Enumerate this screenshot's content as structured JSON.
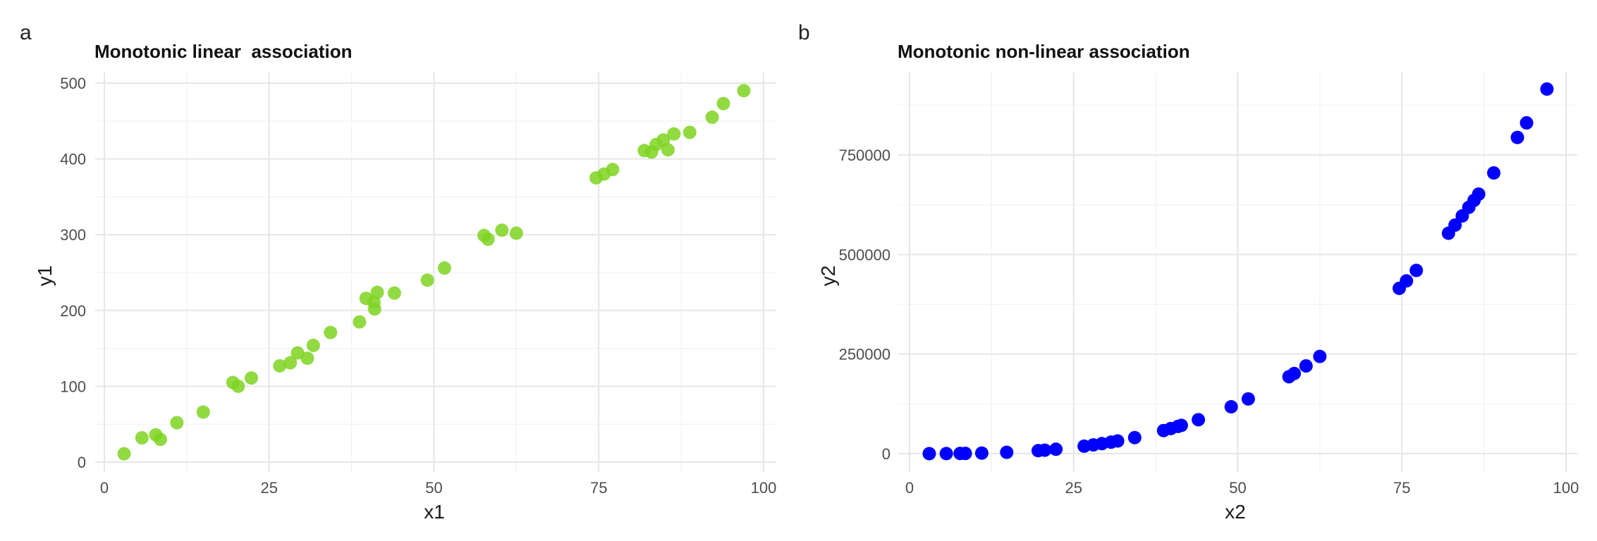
{
  "panels": [
    {
      "letter": "a",
      "title": "Monotonic linear  association"
    },
    {
      "letter": "b",
      "title": "Monotonic non-linear association"
    }
  ],
  "chart_data": [
    {
      "type": "scatter",
      "title": "Monotonic linear  association",
      "xlabel": "x1",
      "ylabel": "y1",
      "xlim": [
        0,
        100
      ],
      "ylim": [
        0,
        500
      ],
      "xticks": [
        0,
        25,
        50,
        75,
        100
      ],
      "yticks": [
        0,
        100,
        200,
        300,
        400,
        500
      ],
      "grid": true,
      "color": "#7ed321",
      "points": [
        [
          3,
          11
        ],
        [
          5.7,
          32
        ],
        [
          7.8,
          36
        ],
        [
          8.5,
          30
        ],
        [
          11,
          52
        ],
        [
          15,
          66
        ],
        [
          19.5,
          105
        ],
        [
          20.3,
          100
        ],
        [
          22.3,
          111
        ],
        [
          26.6,
          127
        ],
        [
          28.2,
          131
        ],
        [
          29.3,
          144
        ],
        [
          30.8,
          137
        ],
        [
          31.7,
          154
        ],
        [
          34.3,
          171
        ],
        [
          38.7,
          185
        ],
        [
          39.7,
          216
        ],
        [
          40.9,
          211
        ],
        [
          41,
          202
        ],
        [
          41.4,
          224
        ],
        [
          44,
          223
        ],
        [
          49,
          240
        ],
        [
          51.6,
          256
        ],
        [
          57.6,
          299
        ],
        [
          58.2,
          294
        ],
        [
          60.3,
          306
        ],
        [
          62.5,
          302
        ],
        [
          74.6,
          375
        ],
        [
          75.8,
          380
        ],
        [
          77.1,
          386
        ],
        [
          81.9,
          411
        ],
        [
          83,
          409
        ],
        [
          83.7,
          419
        ],
        [
          84.8,
          425
        ],
        [
          85.5,
          412
        ],
        [
          86.4,
          433
        ],
        [
          88.8,
          435
        ],
        [
          92.2,
          455
        ],
        [
          93.9,
          473
        ],
        [
          97,
          490
        ]
      ]
    },
    {
      "type": "scatter",
      "title": "Monotonic non-linear association",
      "xlabel": "x2",
      "ylabel": "y2",
      "xlim": [
        0,
        100
      ],
      "ylim": [
        0,
        900000
      ],
      "xticks": [
        0,
        25,
        50,
        75,
        100
      ],
      "yticks": [
        0,
        250000,
        500000,
        750000
      ],
      "grid": true,
      "color": "#0000ff",
      "points": [
        [
          3,
          0
        ],
        [
          5.6,
          200
        ],
        [
          7.7,
          500
        ],
        [
          8.5,
          600
        ],
        [
          11,
          1300
        ],
        [
          14.8,
          3300
        ],
        [
          19.6,
          7500
        ],
        [
          20.6,
          8700
        ],
        [
          22.3,
          11000
        ],
        [
          26.6,
          18800
        ],
        [
          28,
          22000
        ],
        [
          29.3,
          25100
        ],
        [
          30.7,
          28900
        ],
        [
          31.7,
          31800
        ],
        [
          34.3,
          40300
        ],
        [
          38.7,
          58000
        ],
        [
          39.8,
          63000
        ],
        [
          40.9,
          68400
        ],
        [
          41.4,
          71000
        ],
        [
          44,
          85200
        ],
        [
          49,
          117600
        ],
        [
          51.6,
          137400
        ],
        [
          57.8,
          193100
        ],
        [
          58.6,
          201200
        ],
        [
          60.4,
          220300
        ],
        [
          62.5,
          244100
        ],
        [
          74.6,
          415100
        ],
        [
          75.7,
          433800
        ],
        [
          77.2,
          460100
        ],
        [
          82.1,
          553400
        ],
        [
          83.1,
          573900
        ],
        [
          84.2,
          596900
        ],
        [
          85.2,
          618500
        ],
        [
          86,
          636100
        ],
        [
          86.7,
          651700
        ],
        [
          89,
          704900
        ],
        [
          92.6,
          794000
        ],
        [
          94,
          830600
        ],
        [
          97.1,
          915500
        ]
      ]
    }
  ]
}
